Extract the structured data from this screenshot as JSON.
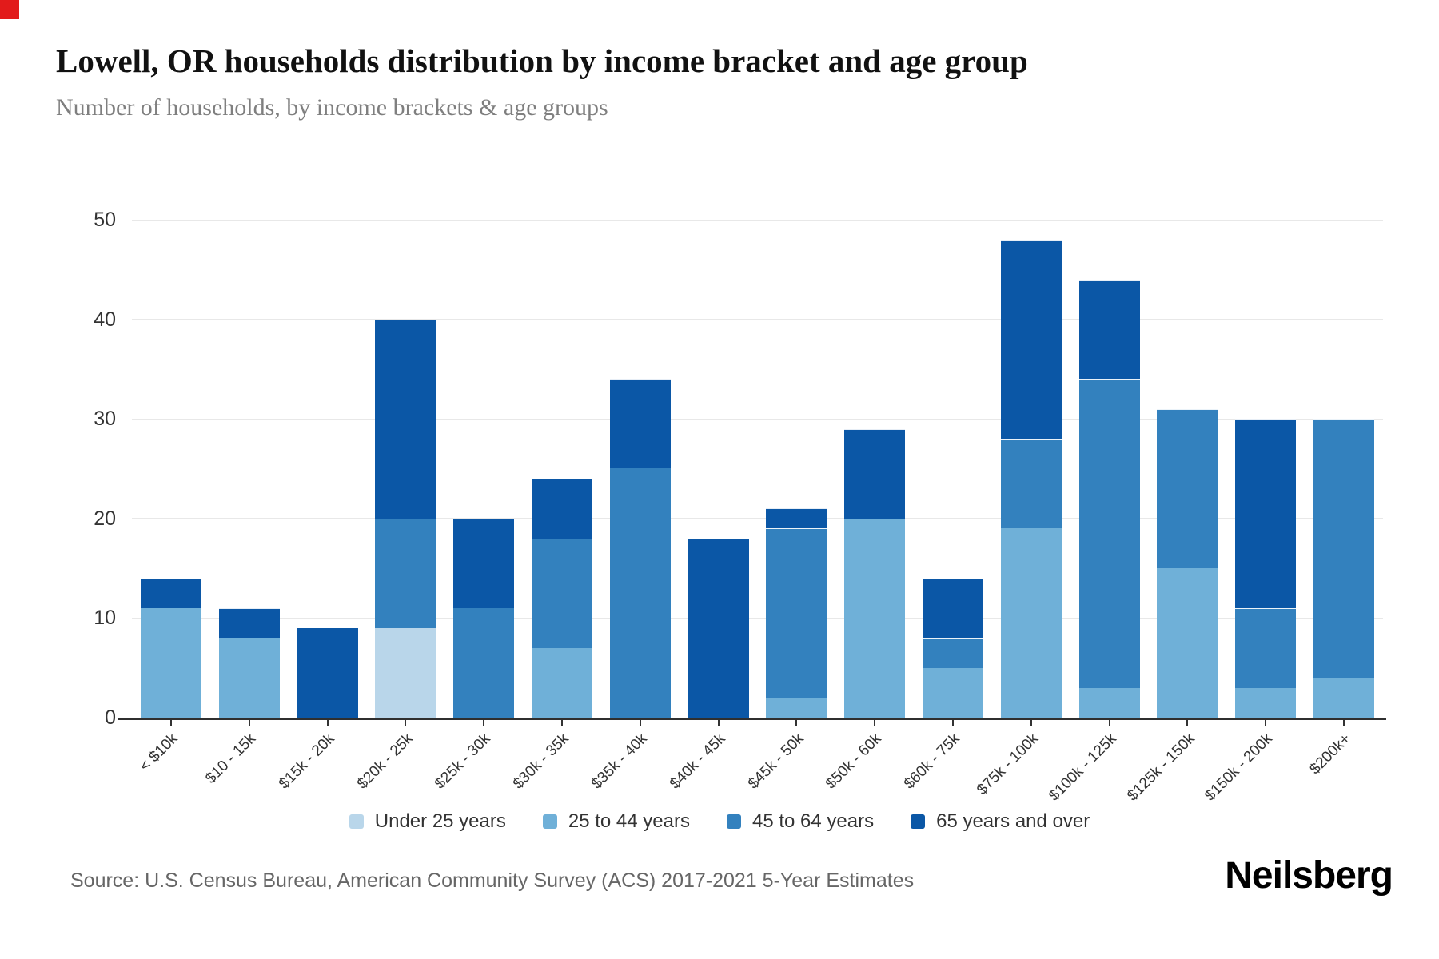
{
  "page": {
    "title": "Lowell, OR households distribution by income bracket and age group",
    "subtitle": "Number of households, by income brackets & age groups",
    "source": "Source: U.S. Census Bureau, American Community Survey (ACS) 2017-2021 5-Year Estimates",
    "brand": "Neilsberg"
  },
  "colors": {
    "grid": "#e8e8e8",
    "axis": "#2f2f2f",
    "corner_marker": "#e21b1b"
  },
  "chart_data": {
    "type": "bar",
    "stacked": true,
    "title": "Lowell, OR households distribution by income bracket and age group",
    "subtitle": "Number of households, by income brackets & age groups",
    "xlabel": "",
    "ylabel": "",
    "ylim": [
      0,
      50
    ],
    "yticks": [
      0,
      10,
      20,
      30,
      40,
      50
    ],
    "grid": true,
    "legend_position": "bottom",
    "categories": [
      "< $10k",
      "$10 - 15k",
      "$15k - 20k",
      "$20k - 25k",
      "$25k - 30k",
      "$30k - 35k",
      "$35k - 40k",
      "$40k - 45k",
      "$45k - 50k",
      "$50k - 60k",
      "$60k - 75k",
      "$75k - 100k",
      "$100k - 125k",
      "$125k - 150k",
      "$150k - 200k",
      "$200k+"
    ],
    "series": [
      {
        "name": "Under 25 years",
        "color": "#b9d6ea",
        "values": [
          0,
          0,
          0,
          9,
          0,
          0,
          0,
          0,
          0,
          0,
          0,
          0,
          0,
          0,
          0,
          0
        ]
      },
      {
        "name": "25 to 44 years",
        "color": "#6fb0d8",
        "values": [
          11,
          8,
          0,
          0,
          0,
          7,
          0,
          0,
          2,
          20,
          5,
          19,
          3,
          15,
          3,
          4
        ]
      },
      {
        "name": "45 to 64 years",
        "color": "#3381be",
        "values": [
          0,
          0,
          0,
          11,
          11,
          11,
          25,
          0,
          17,
          0,
          3,
          9,
          31,
          16,
          8,
          26
        ]
      },
      {
        "name": "65 years and over",
        "color": "#0b57a6",
        "values": [
          3,
          3,
          9,
          20,
          9,
          6,
          9,
          18,
          2,
          9,
          6,
          20,
          10,
          0,
          19,
          0
        ]
      }
    ],
    "totals": [
      14,
      11,
      9,
      40,
      20,
      24,
      34,
      18,
      21,
      29,
      14,
      48,
      44,
      31,
      30,
      30
    ]
  }
}
